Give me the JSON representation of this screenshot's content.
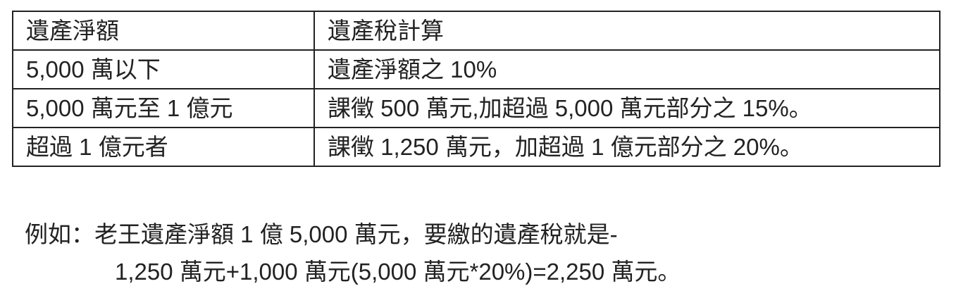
{
  "table": {
    "headers": [
      "遺產淨額",
      "遺產稅計算"
    ],
    "rows": [
      [
        "5,000 萬以下",
        "遺產淨額之 10%"
      ],
      [
        "5,000 萬元至 1 億元",
        "課徵 500 萬元,加超過 5,000 萬元部分之 15%。"
      ],
      [
        "超過 1 億元者",
        "課徵 1,250 萬元，加超過 1 億元部分之 20%。"
      ]
    ]
  },
  "example": {
    "line1": "例如：老王遺產淨額 1 億 5,000 萬元，要繳的遺產稅就是-",
    "line2": "1,250 萬元+1,000 萬元(5,000 萬元*20%)=2,250 萬元。"
  }
}
